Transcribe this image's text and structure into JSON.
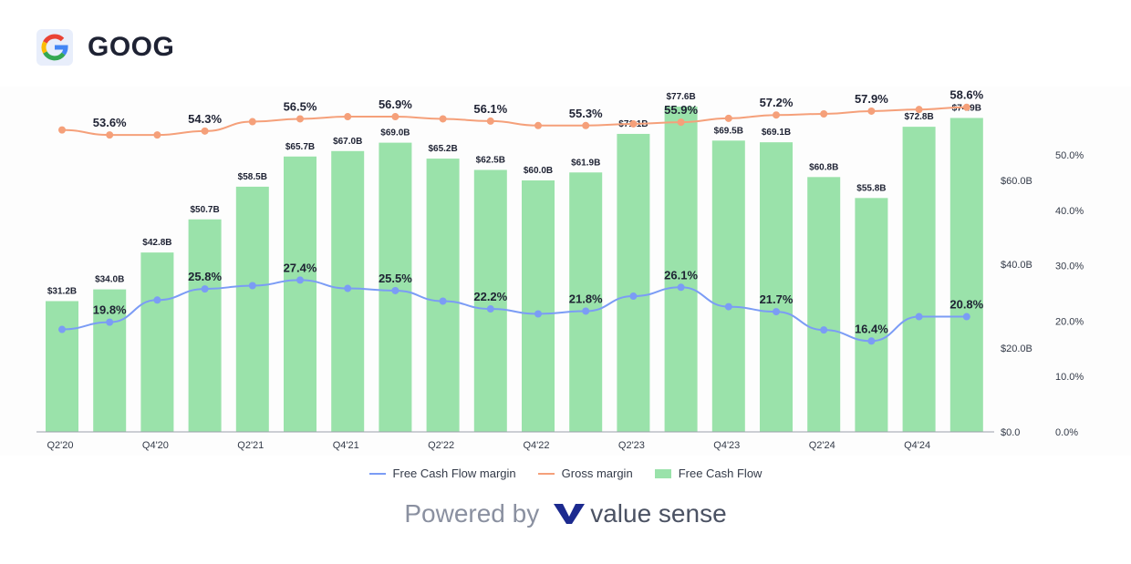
{
  "header": {
    "ticker": "GOOG",
    "logo_icon": "google-g-icon"
  },
  "chart_data": {
    "type": "bar+line",
    "categories": [
      "Q2'20",
      "Q3'20",
      "Q4'20",
      "Q1'21",
      "Q2'21",
      "Q3'21",
      "Q4'21",
      "Q1'22",
      "Q2'22",
      "Q3'22",
      "Q4'22",
      "Q1'23",
      "Q2'23",
      "Q3'23",
      "Q4'23",
      "Q1'24",
      "Q2'24",
      "Q3'24",
      "Q4'24",
      "Q1'25"
    ],
    "x_tick_labels": [
      "Q2'20",
      "",
      "Q4'20",
      "",
      "Q2'21",
      "",
      "Q4'21",
      "",
      "Q2'22",
      "",
      "Q4'22",
      "",
      "Q2'23",
      "",
      "Q4'23",
      "",
      "Q2'24",
      "",
      "Q4'24",
      ""
    ],
    "series": [
      {
        "name": "Free Cash Flow",
        "type": "bar",
        "axis": "left",
        "color": "#9ae2aa",
        "values": [
          31.2,
          34.0,
          42.8,
          50.7,
          58.5,
          65.7,
          67.0,
          69.0,
          65.2,
          62.5,
          60.0,
          61.9,
          71.1,
          77.6,
          69.5,
          69.1,
          60.8,
          55.8,
          72.8,
          74.9
        ],
        "labels": [
          "$31.2B",
          "$34.0B",
          "$42.8B",
          "$50.7B",
          "$58.5B",
          "$65.7B",
          "$67.0B",
          "$69.0B",
          "$65.2B",
          "$62.5B",
          "$60.0B",
          "$61.9B",
          "$71.1B",
          "$77.6B",
          "$69.5B",
          "$69.1B",
          "$60.8B",
          "$55.8B",
          "$72.8B",
          "$74.9B"
        ]
      },
      {
        "name": "Gross margin",
        "type": "line",
        "axis": "right",
        "color": "#f5a07a",
        "values": [
          54.5,
          53.6,
          53.6,
          54.3,
          56.0,
          56.5,
          56.9,
          56.9,
          56.5,
          56.1,
          55.3,
          55.3,
          55.6,
          55.9,
          56.6,
          57.2,
          57.4,
          57.9,
          58.2,
          58.6
        ],
        "labels": [
          "",
          "53.6%",
          "",
          "54.3%",
          "",
          "56.5%",
          "",
          "56.9%",
          "",
          "56.1%",
          "",
          "55.3%",
          "",
          "55.9%",
          "",
          "57.2%",
          "",
          "57.9%",
          "",
          "58.6%"
        ]
      },
      {
        "name": "Free Cash Flow margin",
        "type": "line",
        "axis": "right",
        "color": "#7b9cf5",
        "values": [
          18.5,
          19.8,
          23.8,
          25.8,
          26.4,
          27.4,
          25.9,
          25.5,
          23.6,
          22.2,
          21.3,
          21.8,
          24.5,
          26.1,
          22.6,
          21.7,
          18.4,
          16.4,
          20.8,
          20.8
        ],
        "labels": [
          "",
          "19.8%",
          "",
          "25.8%",
          "",
          "27.4%",
          "",
          "25.5%",
          "",
          "22.2%",
          "",
          "21.8%",
          "",
          "26.1%",
          "",
          "21.7%",
          "",
          "16.4%",
          "",
          "20.8%"
        ]
      }
    ],
    "left_axis": {
      "ticks": [
        "$0.0",
        "$20.0B",
        "$40.0B",
        "$60.0B"
      ],
      "range": [
        0,
        80
      ]
    },
    "right_axis": {
      "ticks": [
        "0.0%",
        "10.0%",
        "20.0%",
        "30.0%",
        "40.0%",
        "50.0%"
      ],
      "range": [
        0,
        60
      ]
    },
    "legend_position": "bottom",
    "grid": false
  },
  "legend": {
    "items": [
      {
        "label": "Free Cash Flow margin",
        "color": "#7b9cf5",
        "kind": "line"
      },
      {
        "label": "Gross margin",
        "color": "#f5a07a",
        "kind": "line"
      },
      {
        "label": "Free Cash Flow",
        "color": "#9ae2aa",
        "kind": "box"
      }
    ]
  },
  "footer": {
    "powered_by": "Powered by",
    "brand": "value sense",
    "brand_icon": "value-sense-v-icon"
  }
}
